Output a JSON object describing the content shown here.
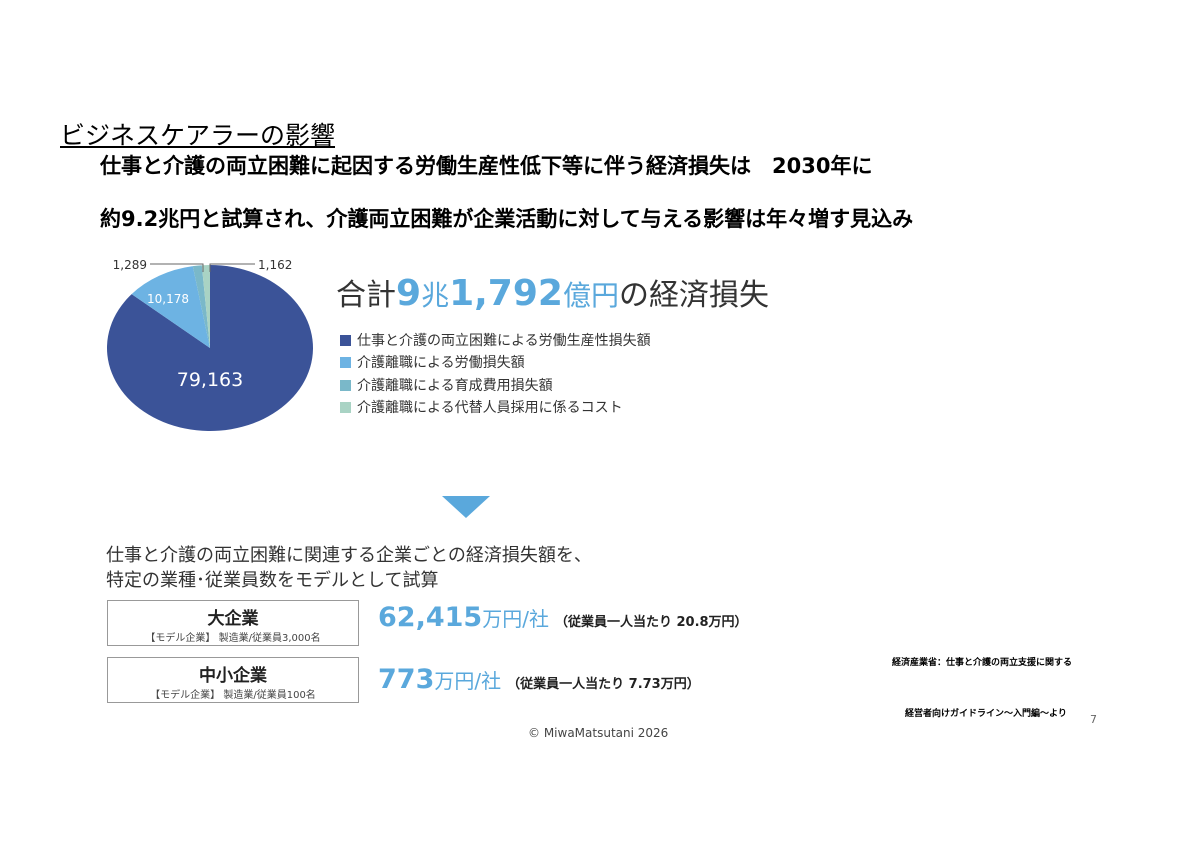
{
  "slide": {
    "section_title": "ビジネスケアラーの影響",
    "headline_line1": "仕事と介護の両立困難に起因する労働生産性低下等に伴う経済損失は　2030年に",
    "headline_line2": "約9.2兆円と試算され、介護両立困難が企業活動に対して与える影響は年々増す見込み",
    "total": {
      "prefix": "合計",
      "num1": "9",
      "unit1": "兆",
      "num2": "1,792",
      "unit2": "億円",
      "suffix": "の経済損失"
    },
    "sub_line1": "仕事と介護の両立困難に関連する企業ごとの経済損失額を、",
    "sub_line2": "特定の業種･従業員数をモデルとして試算",
    "models": [
      {
        "title": "大企業",
        "desc": "【モデル企業】 製造業/従業員3,000名",
        "amount": "62,415",
        "unit": "万円/社",
        "per": "（従業員一人当たり 20.8万円）"
      },
      {
        "title": "中小企業",
        "desc": "【モデル企業】 製造業/従業員100名",
        "amount": "773",
        "unit": "万円/社",
        "per": "（従業員一人当たり 7.73万円）"
      }
    ],
    "source_line1": "経済産業省：仕事と介護の両立支援に関する",
    "source_line2": "経営者向けガイドライン～入門編～より",
    "copyright": "© MiwaMatsutani 2026",
    "page_number": "7",
    "accent_color": "#5aa8dc"
  },
  "chart_data": {
    "type": "pie",
    "start": "top",
    "direction": "clockwise",
    "categories": [
      "仕事と介護の両立困難による労働生産性損失額",
      "介護離職による労働損失額",
      "介護離職による育成費用損失額",
      "介護離職による代替人員採用に係るコスト"
    ],
    "values": [
      79163,
      10178,
      1289,
      1162
    ],
    "labels": [
      "79,163",
      "10,178",
      "1,289",
      "1,162"
    ],
    "colors": [
      "#3b5398",
      "#6db3e3",
      "#7ab8c9",
      "#a9d3c4"
    ],
    "legend_placement": "right"
  }
}
